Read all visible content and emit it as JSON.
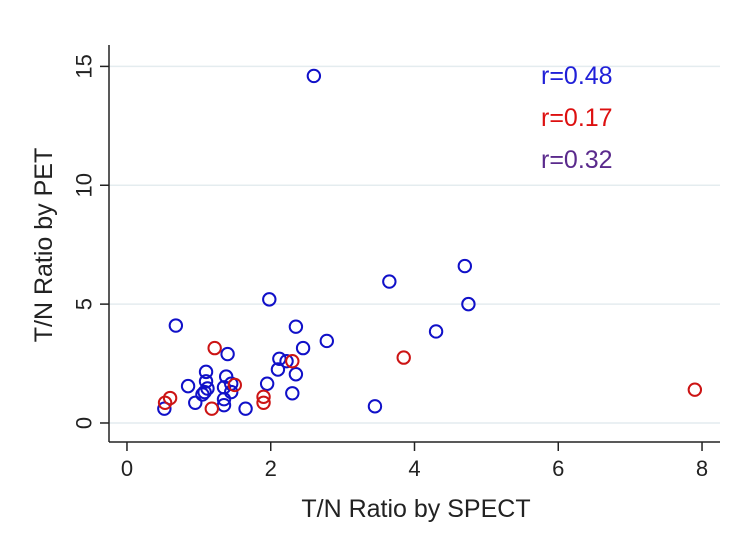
{
  "chart_data": {
    "type": "scatter",
    "title": "",
    "xlabel": "T/N Ratio by SPECT",
    "ylabel": "T/N Ratio by PET",
    "xlim": [
      -0.25,
      8.25
    ],
    "ylim": [
      -0.8,
      15.9
    ],
    "xticks": [
      0,
      2,
      4,
      6,
      8
    ],
    "yticks": [
      0,
      5,
      10,
      15
    ],
    "grid": "horizontal",
    "legend": "none",
    "series": [
      {
        "color": "#1010c8",
        "points": [
          [
            2.6,
            14.6
          ],
          [
            4.7,
            6.6
          ],
          [
            3.65,
            5.95
          ],
          [
            1.98,
            5.2
          ],
          [
            4.75,
            5.0
          ],
          [
            0.68,
            4.1
          ],
          [
            2.35,
            4.05
          ],
          [
            4.3,
            3.85
          ],
          [
            2.78,
            3.45
          ],
          [
            2.45,
            3.15
          ],
          [
            1.4,
            2.9
          ],
          [
            2.12,
            2.7
          ],
          [
            2.22,
            2.6
          ],
          [
            2.1,
            2.25
          ],
          [
            1.1,
            2.15
          ],
          [
            2.35,
            2.05
          ],
          [
            1.38,
            1.95
          ],
          [
            1.1,
            1.75
          ],
          [
            1.45,
            1.65
          ],
          [
            0.85,
            1.55
          ],
          [
            1.95,
            1.65
          ],
          [
            1.12,
            1.45
          ],
          [
            1.35,
            1.5
          ],
          [
            1.08,
            1.3
          ],
          [
            1.45,
            1.3
          ],
          [
            1.05,
            1.2
          ],
          [
            2.3,
            1.25
          ],
          [
            0.95,
            0.85
          ],
          [
            1.35,
            1.0
          ],
          [
            1.35,
            0.75
          ],
          [
            1.65,
            0.6
          ],
          [
            3.45,
            0.7
          ],
          [
            0.52,
            0.6
          ]
        ]
      },
      {
        "color": "#cc1414",
        "points": [
          [
            7.9,
            1.4
          ],
          [
            3.85,
            2.75
          ],
          [
            1.22,
            3.15
          ],
          [
            2.3,
            2.6
          ],
          [
            1.5,
            1.6
          ],
          [
            1.9,
            1.1
          ],
          [
            1.9,
            0.85
          ],
          [
            0.6,
            1.05
          ],
          [
            0.53,
            0.85
          ],
          [
            1.18,
            0.6
          ]
        ]
      }
    ],
    "annotations": [
      {
        "text": "r=0.48",
        "color": "#2020d8"
      },
      {
        "text": "r=0.17",
        "color": "#dd1010"
      },
      {
        "text": "r=0.32",
        "color": "#5a2a8c"
      }
    ]
  }
}
